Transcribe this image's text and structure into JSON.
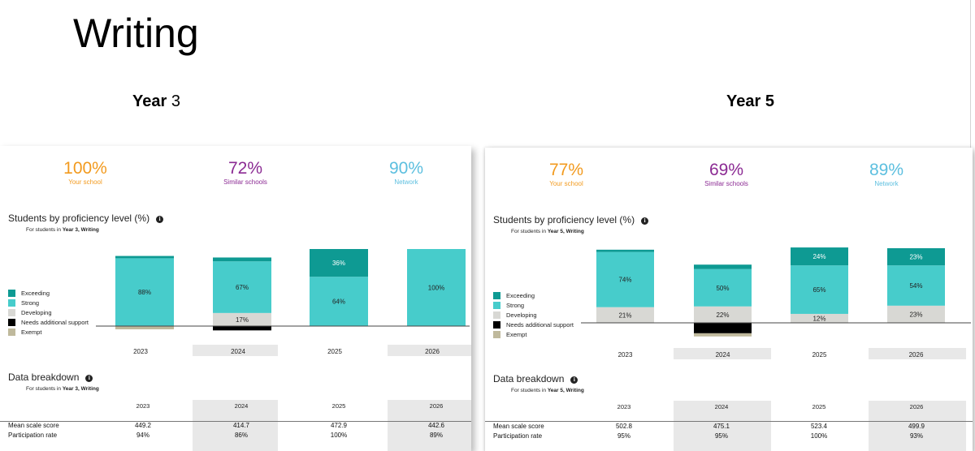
{
  "page": {
    "title": "Writing"
  },
  "colors": {
    "exceeding": "#0e9a93",
    "strong": "#47cccb",
    "developing": "#d8d8d4",
    "needs_support": "#000000",
    "exempt": "#bfb99c",
    "your_school": "#f29a1e",
    "similar_schools": "#8b2a93",
    "network": "#5cbfdf"
  },
  "panels": [
    {
      "heading_bold": "Year",
      "heading_rest": " 3",
      "stats": [
        {
          "value": "100%",
          "label": "Your school"
        },
        {
          "value": "72%",
          "label": "Similar schools"
        },
        {
          "value": "90%",
          "label": "Network"
        }
      ],
      "proficiency_title": "Students by proficiency level (%)",
      "proficiency_sub_prefix": "For students in ",
      "proficiency_sub_bold": "Year 3, Writing",
      "breakdown_title": "Data breakdown",
      "breakdown_sub_prefix": "For students in ",
      "breakdown_sub_bold": "Year 3, Writing",
      "legend": [
        "Exceeding",
        "Strong",
        "Developing",
        "Needs additional support",
        "Exempt"
      ],
      "years": [
        "2023",
        "2024",
        "2025",
        "2026"
      ],
      "table": {
        "headers": [
          "2023",
          "2024",
          "2025",
          "2026"
        ],
        "rows": [
          {
            "label": "Mean scale score",
            "values": [
              "449.2",
              "414.7",
              "472.9",
              "442.6"
            ]
          },
          {
            "label": "Participation rate",
            "values": [
              "94%",
              "86%",
              "100%",
              "89%"
            ]
          }
        ]
      }
    },
    {
      "heading_bold": "Year 5",
      "heading_rest": "",
      "stats": [
        {
          "value": "77%",
          "label": "Your school"
        },
        {
          "value": "69%",
          "label": "Similar schools"
        },
        {
          "value": "89%",
          "label": "Network"
        }
      ],
      "proficiency_title": "Students by proficiency level (%)",
      "proficiency_sub_prefix": "For students in ",
      "proficiency_sub_bold": "Year 5, Writing",
      "breakdown_title": "Data breakdown",
      "breakdown_sub_prefix": "For students in ",
      "breakdown_sub_bold": "Year 5, Writing",
      "legend": [
        "Exceeding",
        "Strong",
        "Developing",
        "Needs additional support",
        "Exempt"
      ],
      "years": [
        "2023",
        "2024",
        "2025",
        "2026"
      ],
      "table": {
        "headers": [
          "2023",
          "2024",
          "2025",
          "2026"
        ],
        "rows": [
          {
            "label": "Mean scale score",
            "values": [
              "502.8",
              "475.1",
              "523.4",
              "499.9"
            ]
          },
          {
            "label": "Participation rate",
            "values": [
              "95%",
              "95%",
              "100%",
              "93%"
            ]
          }
        ]
      }
    }
  ],
  "chart_data": [
    {
      "type": "bar",
      "stacked": true,
      "title": "Students by proficiency level (%)",
      "categories": [
        "2023",
        "2024",
        "2025",
        "2026"
      ],
      "series": [
        {
          "name": "Exceeding",
          "values": [
            3,
            5,
            36,
            0
          ],
          "labels": [
            "",
            "",
            "36%",
            ""
          ]
        },
        {
          "name": "Strong",
          "values": [
            88,
            67,
            64,
            100
          ],
          "labels": [
            "88%",
            "67%",
            "64%",
            "100%"
          ]
        },
        {
          "name": "Developing",
          "values": [
            0,
            17,
            0,
            0
          ],
          "labels": [
            "",
            "17%",
            "",
            ""
          ]
        },
        {
          "name": "Needs additional support",
          "values": [
            0,
            4,
            0,
            0
          ],
          "labels": [
            "",
            "",
            "",
            ""
          ]
        },
        {
          "name": "Exempt",
          "values": [
            3,
            0,
            0,
            0
          ],
          "labels": [
            "",
            "",
            "",
            ""
          ]
        }
      ],
      "legend_position": "left"
    },
    {
      "type": "bar",
      "stacked": true,
      "title": "Students by proficiency level (%)",
      "categories": [
        "2023",
        "2024",
        "2025",
        "2026"
      ],
      "series": [
        {
          "name": "Exceeding",
          "values": [
            3,
            6,
            24,
            23
          ],
          "labels": [
            "",
            "",
            "24%",
            "23%"
          ]
        },
        {
          "name": "Strong",
          "values": [
            74,
            50,
            65,
            54
          ],
          "labels": [
            "74%",
            "50%",
            "65%",
            "54%"
          ]
        },
        {
          "name": "Developing",
          "values": [
            21,
            22,
            12,
            23
          ],
          "labels": [
            "21%",
            "22%",
            "12%",
            "23%"
          ]
        },
        {
          "name": "Needs additional support",
          "values": [
            0,
            10,
            0,
            0
          ],
          "labels": [
            "",
            "",
            "",
            ""
          ]
        },
        {
          "name": "Exempt",
          "values": [
            0,
            3,
            0,
            0
          ],
          "labels": [
            "",
            "",
            "",
            ""
          ]
        }
      ],
      "legend_position": "left"
    }
  ]
}
